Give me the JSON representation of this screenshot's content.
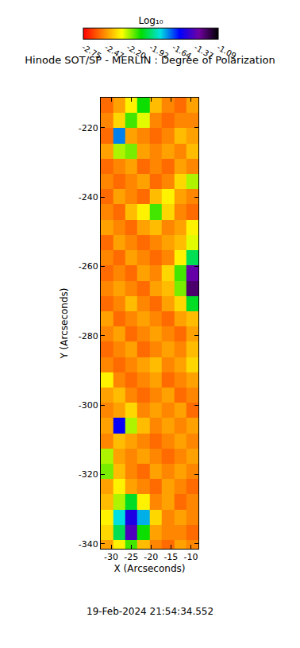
{
  "chart_data": {
    "type": "heatmap",
    "title": "Hinode SOT/SP - MERLIN : Degree of Polarization",
    "x_label": "X (Arcseconds)",
    "y_label": "Y (Arcseconds)",
    "xlim": [
      -32.6,
      -8.1
    ],
    "ylim": [
      -341.4,
      -211.3
    ],
    "xticks": [
      -30,
      -25,
      -20,
      -15,
      -10
    ],
    "yticks": [
      -220,
      -240,
      -260,
      -280,
      -300,
      -320,
      -340
    ],
    "x": [
      -31.1,
      -28.0,
      -25.0,
      -21.9,
      -18.8,
      -15.7,
      -12.7,
      -9.6
    ],
    "y": [
      -213.5,
      -217.9,
      -222.3,
      -226.7,
      -231.1,
      -235.5,
      -239.9,
      -244.3,
      -248.7,
      -253.1,
      -257.5,
      -261.9,
      -266.3,
      -270.7,
      -275.1,
      -279.5,
      -283.9,
      -288.3,
      -292.7,
      -297.1,
      -301.5,
      -305.9,
      -310.3,
      -314.7,
      -319.1,
      -323.5,
      -327.9,
      -332.3,
      -336.7,
      -341.1
    ],
    "z": [
      [
        -2.55,
        -2.45,
        -2.3,
        -2.05,
        -2.4,
        -2.5,
        -2.55,
        -2.45
      ],
      [
        -2.5,
        -2.35,
        -2.1,
        -2.25,
        -2.5,
        -2.55,
        -2.5,
        -2.5
      ],
      [
        -2.55,
        -1.7,
        -2.45,
        -2.5,
        -2.55,
        -2.5,
        -2.4,
        -2.45
      ],
      [
        -2.45,
        -2.2,
        -2.15,
        -2.45,
        -2.5,
        -2.45,
        -2.5,
        -2.4
      ],
      [
        -2.55,
        -2.5,
        -2.45,
        -2.55,
        -2.5,
        -2.55,
        -2.45,
        -2.5
      ],
      [
        -2.5,
        -2.55,
        -2.5,
        -2.45,
        -2.55,
        -2.5,
        -2.35,
        -2.2
      ],
      [
        -2.55,
        -2.45,
        -2.5,
        -2.55,
        -2.4,
        -2.3,
        -2.45,
        -2.5
      ],
      [
        -2.5,
        -2.55,
        -2.4,
        -2.3,
        -2.1,
        -2.35,
        -2.5,
        -2.55
      ],
      [
        -2.45,
        -2.5,
        -2.55,
        -2.45,
        -2.4,
        -2.5,
        -2.45,
        -2.3
      ],
      [
        -2.55,
        -2.45,
        -2.5,
        -2.55,
        -2.5,
        -2.45,
        -2.4,
        -2.25
      ],
      [
        -2.5,
        -2.55,
        -2.45,
        -2.5,
        -2.55,
        -2.5,
        -2.3,
        -1.95
      ],
      [
        -2.55,
        -2.5,
        -2.55,
        -2.45,
        -2.5,
        -2.35,
        -2.1,
        -1.35
      ],
      [
        -2.5,
        -2.45,
        -2.5,
        -2.55,
        -2.45,
        -2.4,
        -2.15,
        -1.25
      ],
      [
        -2.55,
        -2.5,
        -2.4,
        -2.5,
        -2.55,
        -2.45,
        -2.35,
        -2.0
      ],
      [
        -2.45,
        -2.55,
        -2.5,
        -2.45,
        -2.5,
        -2.55,
        -2.45,
        -2.4
      ],
      [
        -2.5,
        -2.45,
        -2.55,
        -2.5,
        -2.45,
        -2.5,
        -2.55,
        -2.45
      ],
      [
        -2.55,
        -2.5,
        -2.45,
        -2.55,
        -2.5,
        -2.45,
        -2.5,
        -2.4
      ],
      [
        -2.5,
        -2.55,
        -2.5,
        -2.45,
        -2.4,
        -2.5,
        -2.45,
        -2.35
      ],
      [
        -2.3,
        -2.5,
        -2.55,
        -2.5,
        -2.45,
        -2.55,
        -2.5,
        -2.45
      ],
      [
        -2.45,
        -2.4,
        -2.5,
        -2.55,
        -2.5,
        -2.45,
        -2.55,
        -2.5
      ],
      [
        -2.5,
        -2.45,
        -2.35,
        -2.5,
        -2.45,
        -2.5,
        -2.45,
        -2.55
      ],
      [
        -2.45,
        -1.55,
        -2.2,
        -2.4,
        -2.5,
        -2.45,
        -2.5,
        -2.45
      ],
      [
        -2.5,
        -2.4,
        -2.45,
        -2.5,
        -2.55,
        -2.5,
        -2.45,
        -2.5
      ],
      [
        -2.2,
        -2.45,
        -2.5,
        -2.45,
        -2.5,
        -2.55,
        -2.5,
        -2.45
      ],
      [
        -2.15,
        -2.4,
        -2.5,
        -2.55,
        -2.45,
        -2.5,
        -2.45,
        -2.5
      ],
      [
        -2.45,
        -2.3,
        -2.45,
        -2.5,
        -2.55,
        -2.45,
        -2.5,
        -2.55
      ],
      [
        -2.4,
        -2.2,
        -2.0,
        -2.3,
        -2.5,
        -2.45,
        -2.55,
        -2.5
      ],
      [
        -2.3,
        -1.8,
        -1.5,
        -1.75,
        -2.35,
        -2.5,
        -2.45,
        -2.5
      ],
      [
        -2.35,
        -1.95,
        -1.4,
        -2.05,
        -2.45,
        -2.5,
        -2.5,
        -2.55
      ],
      [
        -2.45,
        -2.3,
        -2.1,
        -2.4,
        -2.5,
        -2.55,
        -2.45,
        -2.5
      ]
    ],
    "colorbar": {
      "title": "Log₁₀",
      "range": [
        -2.75,
        -1.09
      ],
      "ticks": [
        -2.75,
        -2.47,
        {
          "value": -2.2,
          "label": "-2.20"
        },
        -1.92,
        -1.64,
        -1.37,
        -1.09
      ],
      "colors": [
        "#ff0000",
        "#ff7f00",
        "#ffff00",
        "#00dd00",
        "#00e0e0",
        "#0000ff",
        "#7000a0",
        "#000000"
      ]
    },
    "annotations": [
      "19-Feb-2024 21:54:34.552"
    ]
  }
}
